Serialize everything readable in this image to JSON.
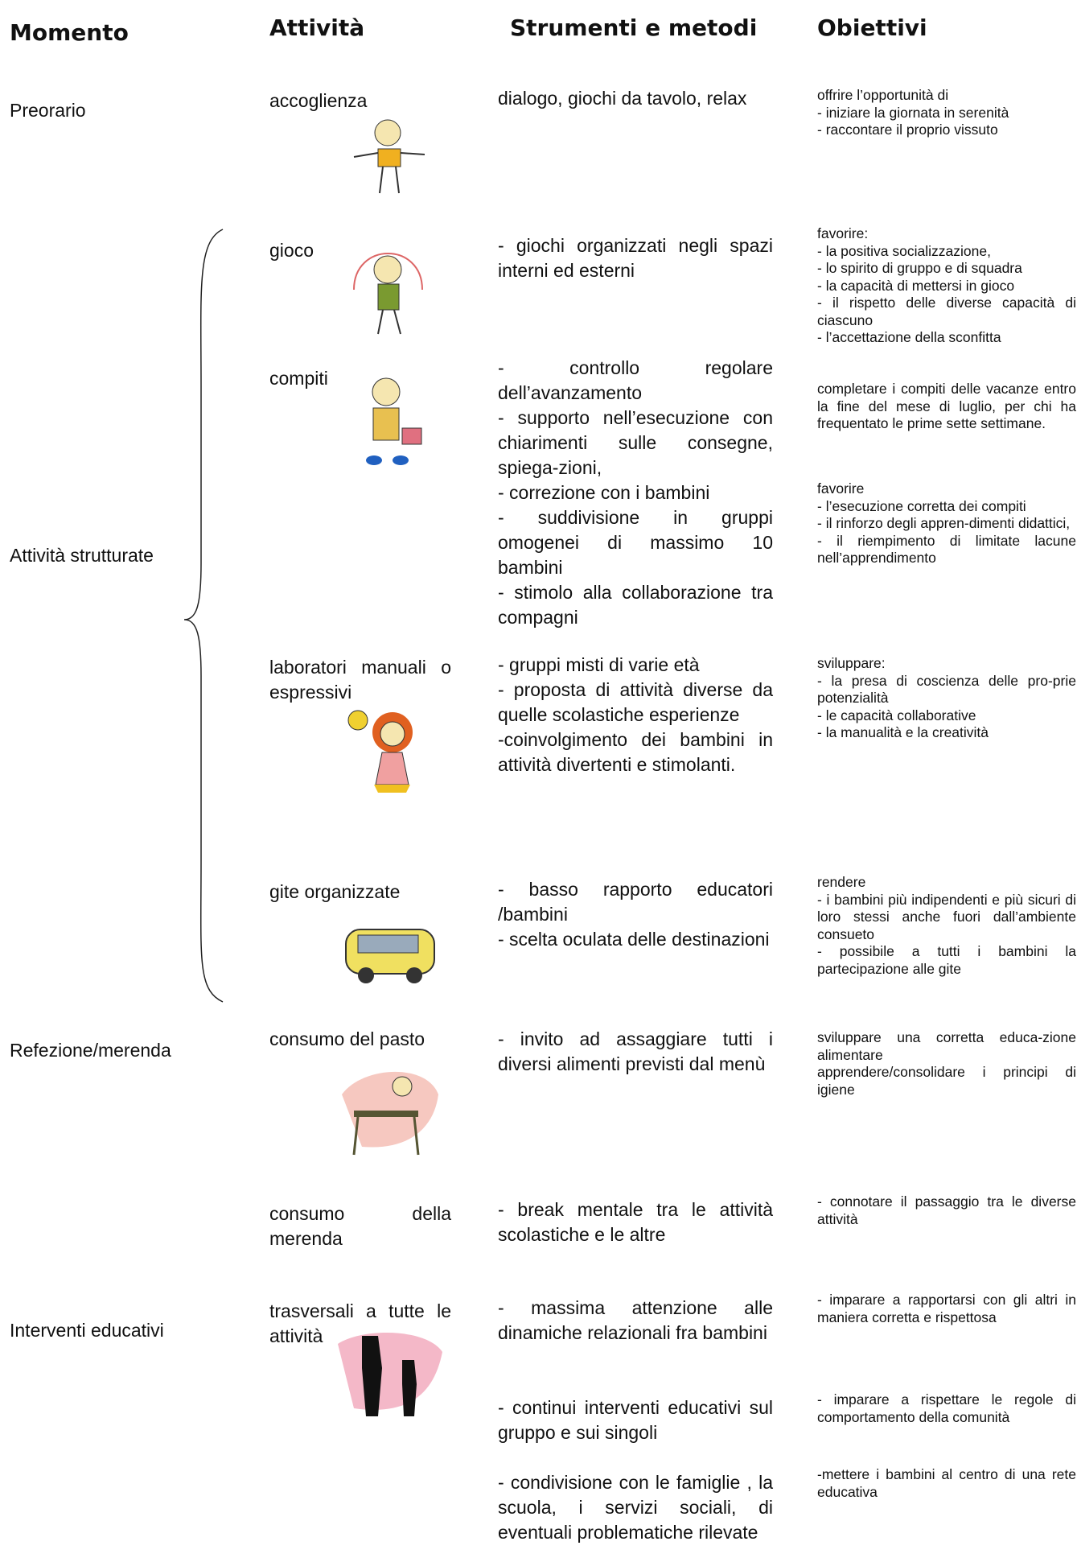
{
  "headers": [
    "Momento",
    "Attività",
    "Strumenti e metodi",
    "Obiettivi"
  ],
  "sections": [
    {
      "moment": "Preorario",
      "activities": [
        {
          "name": "accoglienza",
          "methods": [
            [
              "dialogo, giochi da tavolo, relax"
            ]
          ],
          "objectives": [
            [
              "offrire l’opportunità di",
              "- iniziare la giornata in serenità",
              "- raccontare il proprio vissuto"
            ]
          ]
        }
      ]
    },
    {
      "moment": "Attività strutturate",
      "activities": [
        {
          "name": "gioco",
          "methods": [
            [
              "- giochi organizzati negli spazi interni ed esterni"
            ]
          ],
          "objectives": [
            [
              "favorire:",
              "- la positiva socializzazione,",
              "- lo spirito di gruppo e di squadra",
              "- la capacità di  mettersi in gioco",
              "- il rispetto delle diverse capacità di ciascuno",
              "- l’accettazione della sconfitta"
            ]
          ]
        },
        {
          "name": "compiti",
          "methods": [
            [
              "- controllo regolare dell’avanzamento",
              "- supporto nell’esecuzione con chiarimenti sulle consegne, spiega-zioni,",
              "- correzione con i bambini",
              "- suddivisione in gruppi omogenei di massimo 10 bambini",
              "- stimolo alla collaborazione tra compagni"
            ]
          ],
          "objectives": [
            [
              "completare i compiti delle vacanze entro la fine del mese di luglio, per chi ha frequentato le prime sette settimane."
            ],
            [
              "favorire",
              "- l’esecuzione corretta dei compiti",
              "- il rinforzo degli appren-dimenti didattici,",
              "- il riempimento di limitate lacune nell’apprendimento"
            ]
          ]
        },
        {
          "name": "laboratori manuali o espressivi",
          "methods": [
            [
              "- gruppi misti di varie età",
              "- proposta di attività diverse da quelle scolastiche esperienze",
              "-coinvolgimento dei bambini in attività divertenti e stimolanti."
            ]
          ],
          "objectives": [
            [
              "sviluppare:",
              "- la presa di coscienza delle pro-prie potenzialità",
              "- le capacità collaborative",
              "- la manualità e la creatività"
            ]
          ]
        },
        {
          "name": "gite organizzate",
          "methods": [
            [
              "- basso rapporto educatori /bambini",
              "- scelta oculata delle destinazioni"
            ]
          ],
          "objectives": [
            [
              "rendere",
              "- i bambini più indipendenti e più sicuri di loro stessi anche fuori dall’ambiente consueto",
              "- possibile a tutti i bambini la partecipazione alle gite"
            ]
          ]
        }
      ]
    },
    {
      "moment": "Refezione/merenda",
      "activities": [
        {
          "name": "consumo del pasto",
          "methods": [
            [
              "- invito ad assaggiare tutti i diversi alimenti previsti dal menù"
            ]
          ],
          "objectives": [
            [
              "sviluppare una corretta educa-zione alimentare",
              "apprendere/consolidare i principi di igiene"
            ]
          ]
        },
        {
          "name": "consumo della merenda",
          "methods": [
            [
              "- break mentale tra le attività scolastiche e le altre"
            ]
          ],
          "objectives": [
            [
              "- connotare il passaggio tra le diverse attività"
            ]
          ]
        }
      ]
    },
    {
      "moment": "Interventi educativi",
      "activities": [
        {
          "name": "trasversali a tutte le attività",
          "methods": [
            [
              "- massima attenzione alle dinamiche relazionali fra bambini"
            ],
            [
              "- continui interventi educativi sul gruppo e sui singoli"
            ],
            [
              "- condivisione con le famiglie , la scuola, i servizi sociali, di eventuali problematiche rilevate"
            ]
          ],
          "objectives": [
            [
              "- imparare a rapportarsi con gli altri in maniera corretta e rispettosa"
            ],
            [
              "- imparare a  rispettare le regole di comportamento della comunità"
            ],
            [
              "-mettere i bambini al centro di una rete educativa"
            ]
          ]
        }
      ]
    }
  ]
}
